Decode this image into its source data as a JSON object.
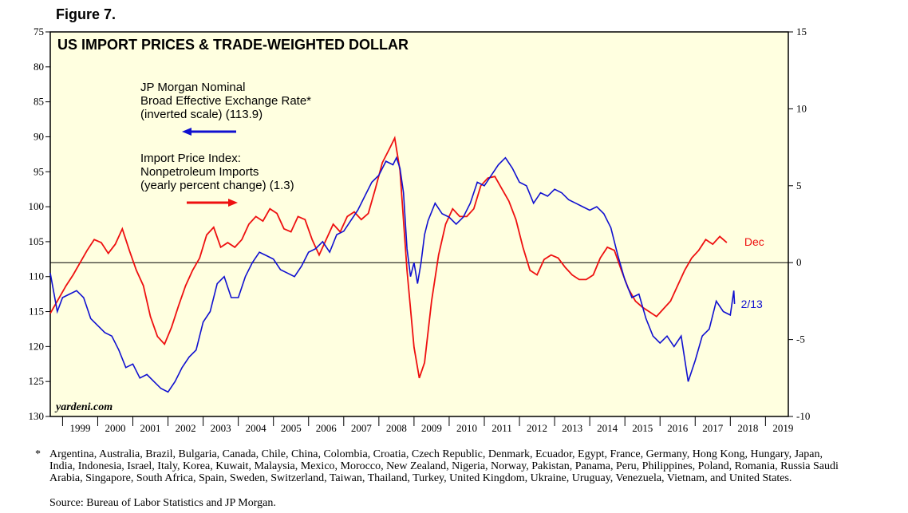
{
  "figure_label": "Figure 7.",
  "footnote_marker": "*",
  "footnote_countries": "Argentina, Australia, Brazil, Bulgaria, Canada, Chile, China, Colombia, Croatia, Czech Republic, Denmark, Ecuador, Egypt, France, Germany, Hong Kong, Hungary, Japan, India, Indonesia, Israel, Italy, Korea, Kuwait, Malaysia, Mexico, Morocco, New Zealand, Nigeria, Norway, Pakistan, Panama, Peru, Philippines, Poland, Romania, Russia Saudi Arabia, Singapore, South Africa, Spain, Sweden, Switzerland, Taiwan, Thailand, Turkey, United Kingdom, Ukraine, Uruguay, Venezuela, Vietnam, and United States.",
  "footnote_source": "Source: Bureau of Labor Statistics and JP Morgan.",
  "colors": {
    "blue_series": "#1010d0",
    "red_series": "#ee1010",
    "plot_bg": "#ffffe0"
  },
  "chart_data": {
    "type": "line",
    "title": "US IMPORT PRICES & TRADE-WEIGHTED DOLLAR",
    "watermark": "yardeni.com",
    "x_range": [
      1998.65,
      2019.65
    ],
    "x_tick_labels": [
      "1999",
      "2000",
      "2001",
      "2002",
      "2003",
      "2004",
      "2005",
      "2006",
      "2007",
      "2008",
      "2009",
      "2010",
      "2011",
      "2012",
      "2013",
      "2014",
      "2015",
      "2016",
      "2017",
      "2018",
      "2019"
    ],
    "left_axis": {
      "label": "",
      "inverted": true,
      "range": [
        75,
        130
      ],
      "tick_labels": [
        "75",
        "80",
        "85",
        "90",
        "95",
        "100",
        "105",
        "110",
        "115",
        "120",
        "125",
        "130"
      ]
    },
    "right_axis": {
      "label": "",
      "range": [
        -10,
        15
      ],
      "tick_labels": [
        "15",
        "10",
        "5",
        "0",
        "-5",
        "-10"
      ]
    },
    "zero_line": 0,
    "series": [
      {
        "name": "JP Morgan Nominal Broad Effective Exchange Rate* (inverted scale) (113.9)",
        "legend_lines": [
          "JP Morgan Nominal",
          "Broad Effective Exchange Rate*",
          "(inverted scale) (113.9)"
        ],
        "axis": "left",
        "color": "#1010d0",
        "end_label": "2/13",
        "last_value": 113.9,
        "x": [
          1998.65,
          1998.85,
          1999.0,
          1999.2,
          1999.4,
          1999.6,
          1999.8,
          2000.0,
          2000.2,
          2000.4,
          2000.6,
          2000.8,
          2001.0,
          2001.2,
          2001.4,
          2001.6,
          2001.8,
          2002.0,
          2002.2,
          2002.4,
          2002.6,
          2002.8,
          2003.0,
          2003.2,
          2003.4,
          2003.6,
          2003.8,
          2004.0,
          2004.2,
          2004.4,
          2004.6,
          2004.8,
          2005.0,
          2005.2,
          2005.4,
          2005.6,
          2005.8,
          2006.0,
          2006.2,
          2006.4,
          2006.6,
          2006.8,
          2007.0,
          2007.2,
          2007.4,
          2007.6,
          2007.8,
          2008.0,
          2008.2,
          2008.4,
          2008.5,
          2008.6,
          2008.7,
          2008.8,
          2008.9,
          2009.0,
          2009.1,
          2009.2,
          2009.3,
          2009.4,
          2009.6,
          2009.8,
          2010.0,
          2010.2,
          2010.4,
          2010.6,
          2010.8,
          2011.0,
          2011.2,
          2011.4,
          2011.6,
          2011.8,
          2012.0,
          2012.2,
          2012.4,
          2012.6,
          2012.8,
          2013.0,
          2013.2,
          2013.4,
          2013.6,
          2013.8,
          2014.0,
          2014.2,
          2014.4,
          2014.6,
          2014.8,
          2015.0,
          2015.2,
          2015.4,
          2015.6,
          2015.8,
          2016.0,
          2016.2,
          2016.4,
          2016.6,
          2016.8,
          2017.0,
          2017.2,
          2017.4,
          2017.6,
          2017.8,
          2018.0,
          2018.1,
          2018.12
        ],
        "values": [
          109.5,
          115,
          113,
          112.5,
          112,
          113,
          116,
          117,
          118,
          118.5,
          120.5,
          123,
          122.5,
          124.5,
          124,
          125,
          126,
          126.5,
          125,
          123,
          121.5,
          120.5,
          116.5,
          115,
          111,
          110,
          113,
          113,
          110,
          108,
          106.5,
          107,
          107.5,
          109,
          109.5,
          110,
          108.5,
          106.5,
          106,
          105,
          106.5,
          104,
          103.5,
          102,
          100.5,
          98.5,
          96.5,
          95.5,
          93.5,
          94,
          93,
          94.5,
          98,
          106,
          110,
          108,
          111,
          108,
          104,
          102,
          99.5,
          101,
          101.5,
          102.5,
          101.5,
          99.5,
          96.5,
          97,
          95.5,
          94,
          93,
          94.5,
          96.5,
          97,
          99.5,
          98,
          98.5,
          97.5,
          98,
          99,
          99.5,
          100,
          100.5,
          100,
          101,
          103,
          107,
          110.5,
          113,
          112.5,
          116,
          118.5,
          119.5,
          118.5,
          120,
          118.5,
          125,
          122,
          118.5,
          117.5,
          113.5,
          115,
          115.5,
          112,
          113.9
        ]
      },
      {
        "name": "Import Price Index: Nonpetroleum Imports (yearly percent change) (1.3)",
        "legend_lines": [
          "Import Price Index:",
          "Nonpetroleum Imports",
          "(yearly percent change) (1.3)"
        ],
        "axis": "right",
        "color": "#ee1010",
        "end_label": "Dec",
        "last_value": 1.3,
        "x": [
          1998.65,
          1998.85,
          1999.1,
          1999.3,
          1999.5,
          1999.7,
          1999.9,
          2000.1,
          2000.3,
          2000.5,
          2000.7,
          2000.9,
          2001.1,
          2001.3,
          2001.5,
          2001.7,
          2001.9,
          2002.1,
          2002.3,
          2002.5,
          2002.7,
          2002.9,
          2003.1,
          2003.3,
          2003.5,
          2003.7,
          2003.9,
          2004.1,
          2004.3,
          2004.5,
          2004.7,
          2004.9,
          2005.1,
          2005.3,
          2005.5,
          2005.7,
          2005.9,
          2006.1,
          2006.3,
          2006.5,
          2006.7,
          2006.9,
          2007.1,
          2007.3,
          2007.5,
          2007.7,
          2007.9,
          2008.1,
          2008.3,
          2008.45,
          2008.6,
          2008.8,
          2009.0,
          2009.15,
          2009.3,
          2009.5,
          2009.7,
          2009.9,
          2010.1,
          2010.3,
          2010.5,
          2010.7,
          2010.9,
          2011.1,
          2011.3,
          2011.5,
          2011.7,
          2011.9,
          2012.1,
          2012.3,
          2012.5,
          2012.7,
          2012.9,
          2013.1,
          2013.3,
          2013.5,
          2013.7,
          2013.9,
          2014.1,
          2014.3,
          2014.5,
          2014.7,
          2014.9,
          2015.1,
          2015.3,
          2015.5,
          2015.7,
          2015.9,
          2016.1,
          2016.3,
          2016.5,
          2016.7,
          2016.9,
          2017.1,
          2017.3,
          2017.5,
          2017.7,
          2017.9
        ],
        "values": [
          -3.3,
          -2.5,
          -1.5,
          -0.8,
          0,
          0.8,
          1.5,
          1.3,
          0.6,
          1.2,
          2.2,
          0.8,
          -0.5,
          -1.5,
          -3.5,
          -4.8,
          -5.3,
          -4.2,
          -2.8,
          -1.5,
          -0.5,
          0.3,
          1.8,
          2.3,
          1.0,
          1.3,
          1.0,
          1.5,
          2.5,
          3.0,
          2.7,
          3.5,
          3.2,
          2.2,
          2.0,
          3.0,
          2.8,
          1.5,
          0.5,
          1.5,
          2.5,
          2.0,
          3.0,
          3.3,
          2.8,
          3.2,
          4.8,
          6.5,
          7.4,
          8.1,
          6.0,
          -0.5,
          -5.5,
          -7.5,
          -6.5,
          -2.5,
          0.5,
          2.5,
          3.5,
          3.0,
          3.0,
          3.5,
          5.0,
          5.5,
          5.6,
          4.8,
          4.0,
          2.8,
          1.0,
          -0.5,
          -0.8,
          0.2,
          0.5,
          0.3,
          -0.3,
          -0.8,
          -1.1,
          -1.1,
          -0.8,
          0.3,
          1.0,
          0.8,
          -0.5,
          -1.7,
          -2.5,
          -2.9,
          -3.2,
          -3.5,
          -3.0,
          -2.5,
          -1.5,
          -0.5,
          0.3,
          0.8,
          1.5,
          1.2,
          1.7,
          1.3
        ]
      }
    ]
  }
}
